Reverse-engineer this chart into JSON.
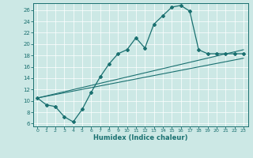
{
  "xlabel": "Humidex (Indice chaleur)",
  "bg_color": "#cce8e5",
  "line_color": "#1a7070",
  "xlim": [
    -0.5,
    23.5
  ],
  "ylim": [
    5.5,
    27.2
  ],
  "xticks": [
    0,
    1,
    2,
    3,
    4,
    5,
    6,
    7,
    8,
    9,
    10,
    11,
    12,
    13,
    14,
    15,
    16,
    17,
    18,
    19,
    20,
    21,
    22,
    23
  ],
  "yticks": [
    6,
    8,
    10,
    12,
    14,
    16,
    18,
    20,
    22,
    24,
    26
  ],
  "main_x": [
    0,
    1,
    2,
    3,
    4,
    5,
    6,
    7,
    8,
    9,
    10,
    11,
    12,
    13,
    14,
    15,
    16,
    17,
    18,
    19,
    20,
    21,
    22,
    23
  ],
  "main_y": [
    10.5,
    9.3,
    9.0,
    7.2,
    6.3,
    8.5,
    11.5,
    14.2,
    16.5,
    18.3,
    19.0,
    21.1,
    19.3,
    23.5,
    25.0,
    26.5,
    26.8,
    25.8,
    19.0,
    18.3,
    18.3,
    18.3,
    18.3,
    18.3
  ],
  "line2_x": [
    0,
    23
  ],
  "line2_y": [
    10.5,
    19.0
  ],
  "line3_x": [
    0,
    23
  ],
  "line3_y": [
    10.5,
    17.5
  ]
}
